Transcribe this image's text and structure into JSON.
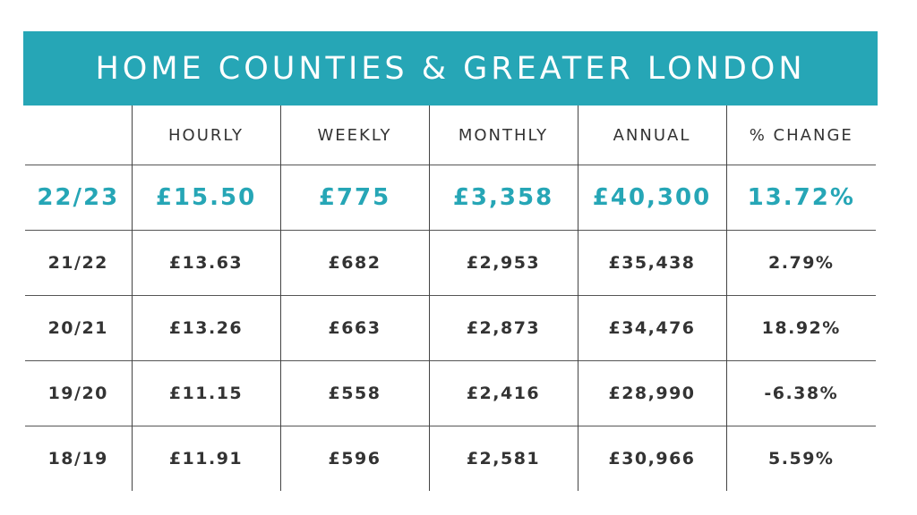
{
  "colors": {
    "accent": "#26a6b6",
    "text": "#333333",
    "background": "#ffffff"
  },
  "chart_data": {
    "type": "table",
    "title": "HOME COUNTIES & GREATER LONDON",
    "columns": [
      "",
      "HOURLY",
      "WEEKLY",
      "MONTHLY",
      "ANNUAL",
      "% CHANGE"
    ],
    "rows": [
      {
        "period": "22/23",
        "hourly": "£15.50",
        "weekly": "£775",
        "monthly": "£3,358",
        "annual": "£40,300",
        "change": "13.72%",
        "highlight": true
      },
      {
        "period": "21/22",
        "hourly": "£13.63",
        "weekly": "£682",
        "monthly": "£2,953",
        "annual": "£35,438",
        "change": "2.79%"
      },
      {
        "period": "20/21",
        "hourly": "£13.26",
        "weekly": "£663",
        "monthly": "£2,873",
        "annual": "£34,476",
        "change": "18.92%"
      },
      {
        "period": "19/20",
        "hourly": "£11.15",
        "weekly": "£558",
        "monthly": "£2,416",
        "annual": "£28,990",
        "change": "-6.38%"
      },
      {
        "period": "18/19",
        "hourly": "£11.91",
        "weekly": "£596",
        "monthly": "£2,581",
        "annual": "£30,966",
        "change": "5.59%"
      }
    ]
  }
}
